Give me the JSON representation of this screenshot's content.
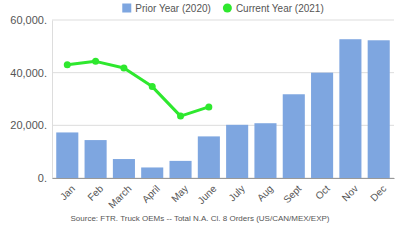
{
  "chart_data": {
    "type": "bar",
    "categories": [
      "Jan",
      "Feb",
      "March",
      "April",
      "May",
      "June",
      "July",
      "Aug",
      "Sept",
      "Oct",
      "Nov",
      "Dec"
    ],
    "series": [
      {
        "name": "Prior Year (2020)",
        "type": "bar",
        "color": "#7ea6e0",
        "values": [
          17300,
          14400,
          7200,
          4000,
          6500,
          15800,
          20200,
          20800,
          31800,
          40000,
          52700,
          52300
        ]
      },
      {
        "name": "Current Year (2021)",
        "type": "line",
        "color": "#2ee82e",
        "marker": "circle",
        "values": [
          43000,
          44300,
          41800,
          34700,
          23500,
          27000,
          null,
          null,
          null,
          null,
          null,
          null
        ]
      }
    ],
    "ylim": [
      0,
      60000
    ],
    "yticks": [
      {
        "value": 0,
        "label": "0."
      },
      {
        "value": 20000,
        "label": "20,000."
      },
      {
        "value": 40000,
        "label": "40,000."
      },
      {
        "value": 60000,
        "label": "60,000."
      }
    ],
    "grid": true,
    "legend": "top",
    "annotations": [
      "Source: FTR. Truck OEMs -- Total N.A. Cl. 8 Orders (US/CAN/MEX/EXP)"
    ]
  }
}
